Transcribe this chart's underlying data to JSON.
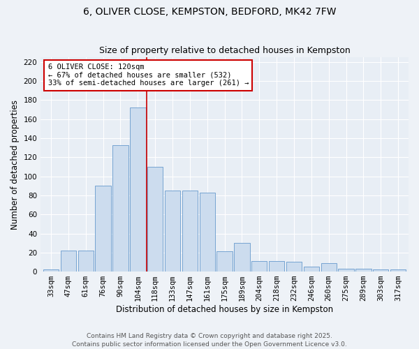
{
  "title_line1": "6, OLIVER CLOSE, KEMPSTON, BEDFORD, MK42 7FW",
  "title_line2": "Size of property relative to detached houses in Kempston",
  "xlabel": "Distribution of detached houses by size in Kempston",
  "ylabel": "Number of detached properties",
  "categories": [
    "33sqm",
    "47sqm",
    "61sqm",
    "76sqm",
    "90sqm",
    "104sqm",
    "118sqm",
    "133sqm",
    "147sqm",
    "161sqm",
    "175sqm",
    "189sqm",
    "204sqm",
    "218sqm",
    "232sqm",
    "246sqm",
    "260sqm",
    "275sqm",
    "289sqm",
    "303sqm",
    "317sqm"
  ],
  "values": [
    2,
    22,
    22,
    90,
    133,
    172,
    110,
    85,
    85,
    83,
    21,
    30,
    11,
    11,
    10,
    5,
    9,
    3,
    3,
    2,
    2
  ],
  "bar_color": "#ccdcee",
  "bar_edge_color": "#6699cc",
  "vline_color": "#cc0000",
  "vline_x": 5.5,
  "annotation_text": "6 OLIVER CLOSE: 120sqm\n← 67% of detached houses are smaller (532)\n33% of semi-detached houses are larger (261) →",
  "annotation_box_color": "#ffffff",
  "annotation_box_edge": "#cc0000",
  "ylim": [
    0,
    225
  ],
  "yticks": [
    0,
    20,
    40,
    60,
    80,
    100,
    120,
    140,
    160,
    180,
    200,
    220
  ],
  "bg_color": "#e8eef5",
  "fig_bg_color": "#eef2f7",
  "footer": "Contains HM Land Registry data © Crown copyright and database right 2025.\nContains public sector information licensed under the Open Government Licence v3.0.",
  "title_fontsize": 10,
  "subtitle_fontsize": 9,
  "axis_label_fontsize": 8.5,
  "tick_fontsize": 7.5,
  "annotation_fontsize": 7.5,
  "footer_fontsize": 6.5
}
